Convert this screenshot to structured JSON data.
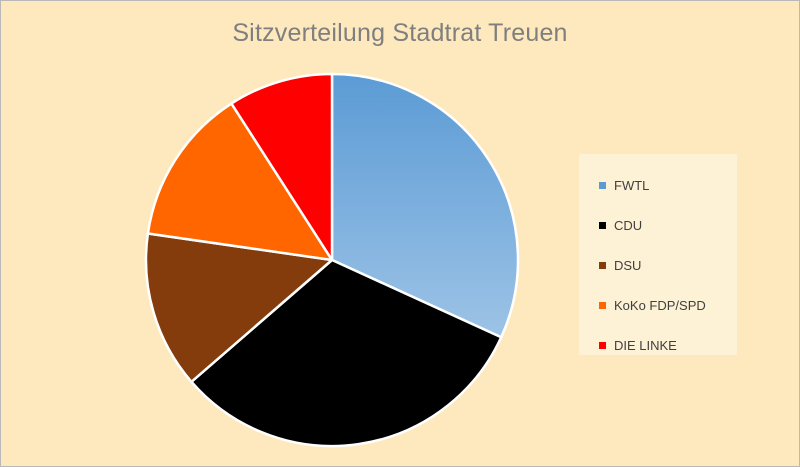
{
  "chart_data": {
    "type": "pie",
    "title": "Sitzverteilung Stadtrat Treuen",
    "slices": [
      {
        "label": "FWTL",
        "value": 7,
        "color": "#5b9bd5",
        "color_light": "#9dc3e6"
      },
      {
        "label": "CDU",
        "value": 7,
        "color": "#000000"
      },
      {
        "label": "DSU",
        "value": 3,
        "color": "#843c0c"
      },
      {
        "label": "KoKo FDP/SPD",
        "value": 3,
        "color": "#ff6600"
      },
      {
        "label": "DIE LINKE",
        "value": 2,
        "color": "#ff0000"
      }
    ],
    "legend_position": "right"
  }
}
